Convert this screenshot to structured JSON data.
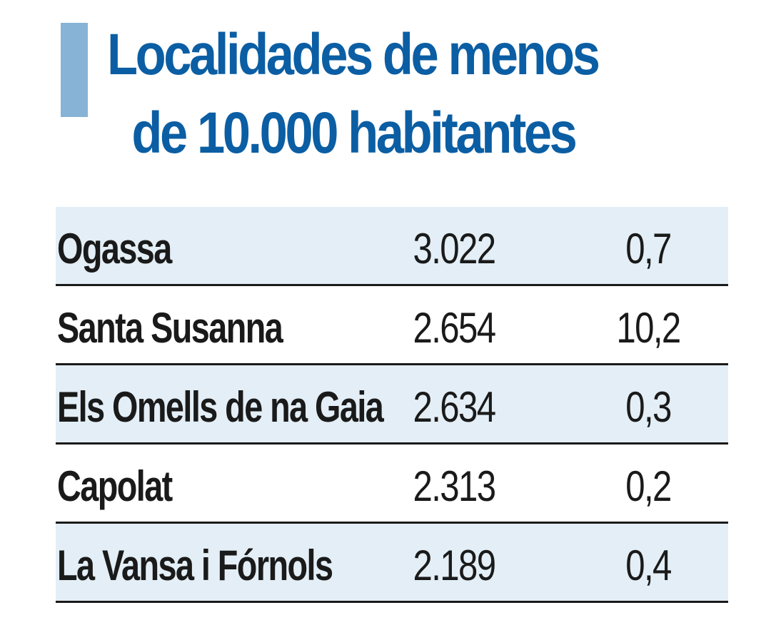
{
  "colors": {
    "title": "#0b5ea3",
    "accent_bar": "#86b3d6",
    "row_shaded": "#e3eef6",
    "row_plain": "#ffffff",
    "text": "#1a1a1a"
  },
  "chart_data": {
    "type": "table",
    "title": [
      "Localidades de menos",
      "de 10.000 habitantes"
    ],
    "rows": [
      {
        "name": "Ogassa",
        "population": "3.022",
        "percent": "0,7"
      },
      {
        "name": "Santa Susanna",
        "population": "2.654",
        "percent": "10,2"
      },
      {
        "name": "Els Omells de na Gaia",
        "population": "2.634",
        "percent": "0,3"
      },
      {
        "name": "Capolat",
        "population": "2.313",
        "percent": "0,2"
      },
      {
        "name": "La Vansa i Fórnols",
        "population": "2.189",
        "percent": "0,4"
      }
    ]
  }
}
